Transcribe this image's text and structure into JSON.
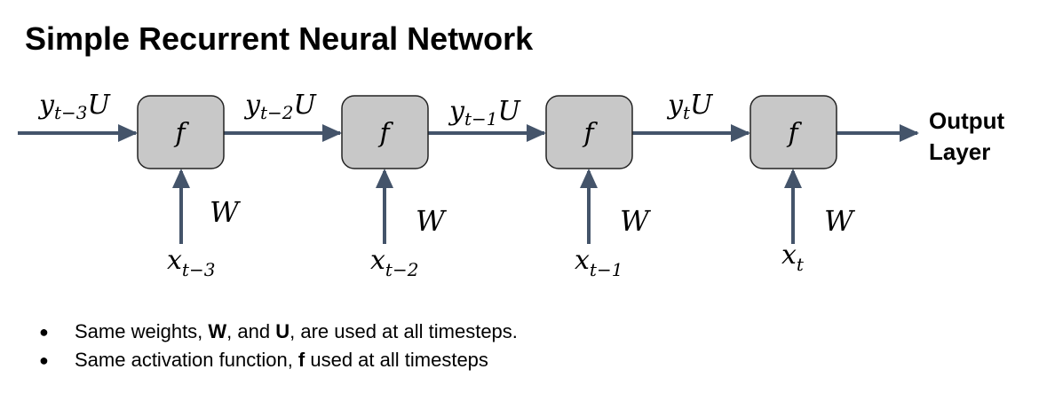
{
  "title": "Simple Recurrent Neural Network",
  "colors": {
    "node_fill": "#c8c8c8",
    "node_stroke": "#222222",
    "arrow": "#44546a"
  },
  "nodes": [
    {
      "label": "f",
      "input": {
        "base": "x",
        "sub": "t−3"
      },
      "weight": "W"
    },
    {
      "label": "f",
      "input": {
        "base": "x",
        "sub": "t−2"
      },
      "weight": "W"
    },
    {
      "label": "f",
      "input": {
        "base": "x",
        "sub": "t−1"
      },
      "weight": "W"
    },
    {
      "label": "f",
      "input": {
        "base": "x",
        "sub": "t"
      },
      "weight": "W"
    }
  ],
  "recurrent_labels": [
    {
      "base": "y",
      "sub": "t−3",
      "suffix": "U"
    },
    {
      "base": "y",
      "sub": "t−2",
      "suffix": "U"
    },
    {
      "base": "y",
      "sub": "t−1",
      "suffix": "U"
    },
    {
      "base": "y",
      "sub": "t",
      "suffix": "U"
    }
  ],
  "output": {
    "line1": "Output",
    "line2": "Layer"
  },
  "bullets": [
    {
      "pre": "Same weights, ",
      "b1": "W",
      "mid": ", and ",
      "b2": "U",
      "post": ", are used at all timesteps."
    },
    {
      "pre": "Same activation function, ",
      "b1": "f",
      "post": " used at all timesteps"
    }
  ]
}
